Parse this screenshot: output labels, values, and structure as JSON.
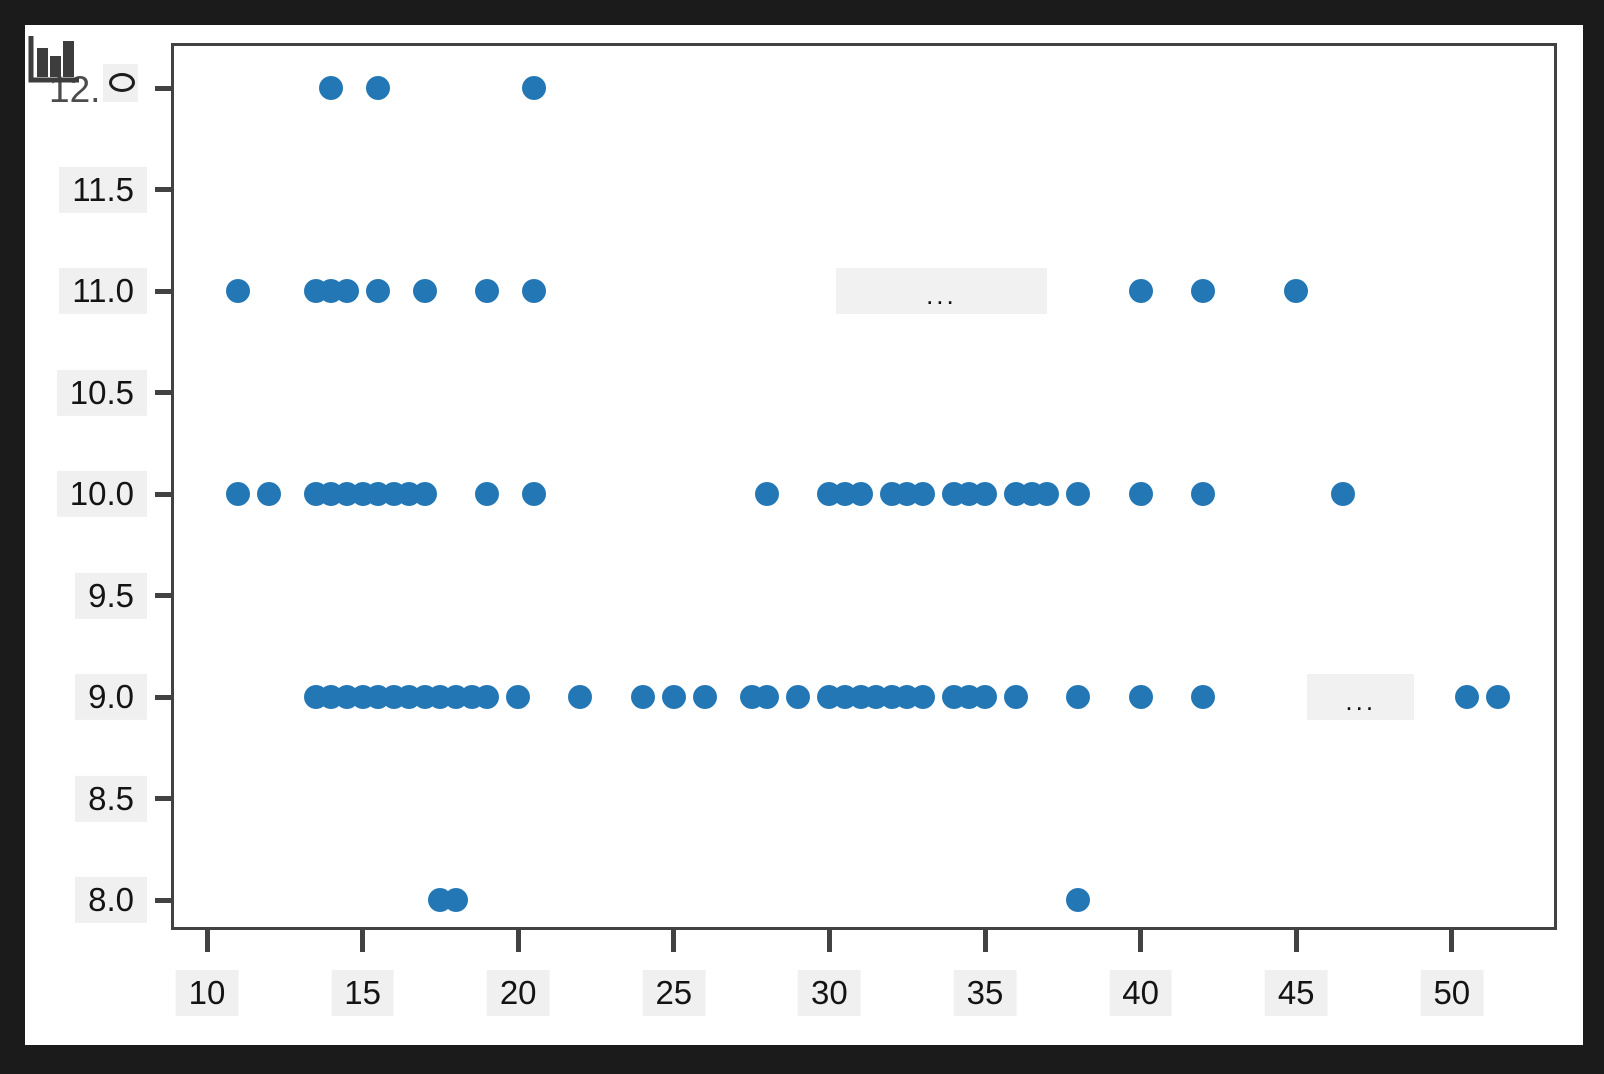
{
  "frame": {
    "outer_bg": "#1b1b1b",
    "canvas_bg": "#ffffff",
    "plot_border_color": "#424242",
    "tick_label_bg": "#f0f0f0"
  },
  "corner": {
    "icon": "bar-chart-icon",
    "partial_label": "12.",
    "superscript": "o"
  },
  "chart_data": {
    "type": "scatter",
    "title": "",
    "xlabel": "",
    "ylabel": "",
    "xlim": [
      8.9,
      53.2
    ],
    "ylim": [
      7.85,
      12.2
    ],
    "grid": false,
    "legend": null,
    "marker_color": "#2377b4",
    "x_ticks": [
      10,
      15,
      20,
      25,
      30,
      35,
      40,
      45,
      50
    ],
    "y_ticks": [
      12.0,
      11.5,
      11.0,
      10.5,
      10.0,
      9.5,
      9.0,
      8.5,
      8.0
    ],
    "x_tick_labels": [
      "10",
      "15",
      "20",
      "25",
      "30",
      "35",
      "40",
      "45",
      "50"
    ],
    "y_tick_labels": [
      "12.0",
      "11.5",
      "11.0",
      "10.5",
      "10.0",
      "9.5",
      "9.0",
      "8.5",
      "8.0"
    ],
    "points": [
      [
        14,
        12
      ],
      [
        15.5,
        12
      ],
      [
        20.5,
        12
      ],
      [
        11,
        11
      ],
      [
        13.5,
        11
      ],
      [
        14,
        11
      ],
      [
        14.5,
        11
      ],
      [
        15.5,
        11
      ],
      [
        17,
        11
      ],
      [
        19,
        11
      ],
      [
        20.5,
        11
      ],
      [
        40,
        11
      ],
      [
        42,
        11
      ],
      [
        45,
        11
      ],
      [
        11,
        10
      ],
      [
        12,
        10
      ],
      [
        13.5,
        10
      ],
      [
        14,
        10
      ],
      [
        14.5,
        10
      ],
      [
        15,
        10
      ],
      [
        15.5,
        10
      ],
      [
        16,
        10
      ],
      [
        16.5,
        10
      ],
      [
        17,
        10
      ],
      [
        19,
        10
      ],
      [
        20.5,
        10
      ],
      [
        28,
        10
      ],
      [
        30,
        10
      ],
      [
        30.5,
        10
      ],
      [
        31,
        10
      ],
      [
        32,
        10
      ],
      [
        32.5,
        10
      ],
      [
        33,
        10
      ],
      [
        34,
        10
      ],
      [
        34.5,
        10
      ],
      [
        35,
        10
      ],
      [
        36,
        10
      ],
      [
        36.5,
        10
      ],
      [
        37,
        10
      ],
      [
        38,
        10
      ],
      [
        40,
        10
      ],
      [
        42,
        10
      ],
      [
        46.5,
        10
      ],
      [
        13.5,
        9
      ],
      [
        14,
        9
      ],
      [
        14.5,
        9
      ],
      [
        15,
        9
      ],
      [
        15.5,
        9
      ],
      [
        16,
        9
      ],
      [
        16.5,
        9
      ],
      [
        17,
        9
      ],
      [
        17.5,
        9
      ],
      [
        18,
        9
      ],
      [
        18.5,
        9
      ],
      [
        19,
        9
      ],
      [
        20,
        9
      ],
      [
        22,
        9
      ],
      [
        24,
        9
      ],
      [
        25,
        9
      ],
      [
        26,
        9
      ],
      [
        27.5,
        9
      ],
      [
        28,
        9
      ],
      [
        29,
        9
      ],
      [
        30,
        9
      ],
      [
        30.5,
        9
      ],
      [
        31,
        9
      ],
      [
        31.5,
        9
      ],
      [
        32,
        9
      ],
      [
        32.5,
        9
      ],
      [
        33,
        9
      ],
      [
        34,
        9
      ],
      [
        34.5,
        9
      ],
      [
        35,
        9
      ],
      [
        36,
        9
      ],
      [
        38,
        9
      ],
      [
        40,
        9
      ],
      [
        42,
        9
      ],
      [
        50.5,
        9
      ],
      [
        51.5,
        9
      ],
      [
        17.5,
        8
      ],
      [
        18,
        8
      ],
      [
        38,
        8
      ]
    ],
    "annotations": [
      {
        "text": "...",
        "y": 11,
        "x_range": [
          30.2,
          37.0
        ]
      },
      {
        "text": "...",
        "y": 9,
        "x_range": [
          45.35,
          48.8
        ]
      }
    ]
  }
}
